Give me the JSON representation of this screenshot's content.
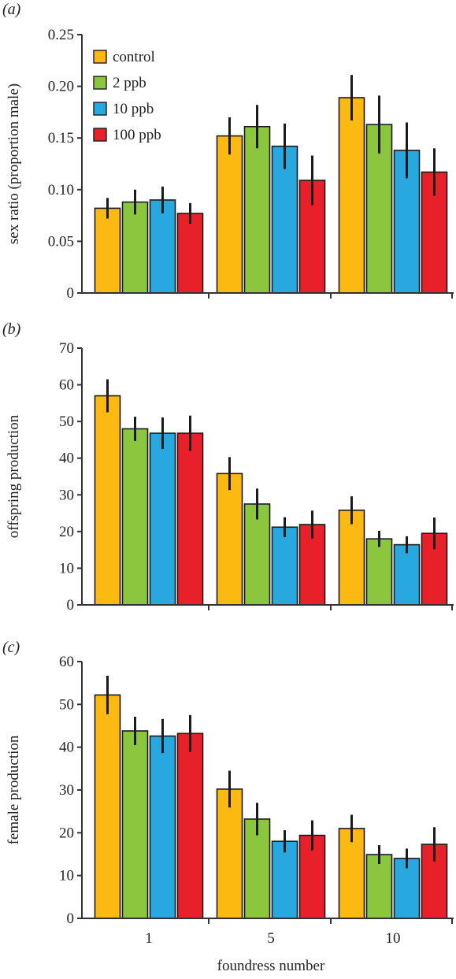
{
  "chart_data": [
    {
      "type": "bar",
      "panel_label": "(a)",
      "ylabel": "sex ratio (proportion male)",
      "xlabel": "",
      "categories": [
        "1",
        "5",
        "10"
      ],
      "ylim": [
        0,
        0.25
      ],
      "yticks": [
        0,
        0.05,
        0.1,
        0.15,
        0.2,
        0.25
      ],
      "ytick_labels": [
        "0",
        "0.05",
        "0.10",
        "0.15",
        "0.20",
        "0.25"
      ],
      "legend": {
        "show": true,
        "position": "top-left"
      },
      "series": [
        {
          "name": "control",
          "values": [
            0.082,
            0.152,
            0.189
          ],
          "errors": [
            0.01,
            0.018,
            0.022
          ]
        },
        {
          "name": "2 ppb",
          "values": [
            0.088,
            0.161,
            0.163
          ],
          "errors": [
            0.012,
            0.021,
            0.028
          ]
        },
        {
          "name": "10 ppb",
          "values": [
            0.09,
            0.142,
            0.138
          ],
          "errors": [
            0.013,
            0.022,
            0.027
          ]
        },
        {
          "name": "100 ppb",
          "values": [
            0.077,
            0.109,
            0.117
          ],
          "errors": [
            0.01,
            0.024,
            0.023
          ]
        }
      ]
    },
    {
      "type": "bar",
      "panel_label": "(b)",
      "ylabel": "offspring production",
      "xlabel": "",
      "categories": [
        "1",
        "5",
        "10"
      ],
      "ylim": [
        0,
        70
      ],
      "yticks": [
        0,
        10,
        20,
        30,
        40,
        50,
        60,
        70
      ],
      "ytick_labels": [
        "0",
        "10",
        "20",
        "30",
        "40",
        "50",
        "60",
        "70"
      ],
      "legend": {
        "show": false
      },
      "series": [
        {
          "name": "control",
          "values": [
            57.0,
            35.8,
            25.8
          ],
          "errors": [
            4.5,
            4.5,
            3.8
          ]
        },
        {
          "name": "2 ppb",
          "values": [
            48.0,
            27.5,
            18.0
          ],
          "errors": [
            3.3,
            4.2,
            2.2
          ]
        },
        {
          "name": "10 ppb",
          "values": [
            46.8,
            21.2,
            16.4
          ],
          "errors": [
            4.3,
            2.7,
            2.3
          ]
        },
        {
          "name": "100 ppb",
          "values": [
            46.8,
            21.9,
            19.5
          ],
          "errors": [
            4.8,
            3.8,
            4.3
          ]
        }
      ]
    },
    {
      "type": "bar",
      "panel_label": "(c)",
      "ylabel": "female production",
      "xlabel": "foundress number",
      "categories": [
        "1",
        "5",
        "10"
      ],
      "ylim": [
        0,
        60
      ],
      "yticks": [
        0,
        10,
        20,
        30,
        40,
        50,
        60
      ],
      "ytick_labels": [
        "0",
        "10",
        "20",
        "30",
        "40",
        "50",
        "60"
      ],
      "legend": {
        "show": false
      },
      "series": [
        {
          "name": "control",
          "values": [
            52.2,
            30.2,
            21.0
          ],
          "errors": [
            4.5,
            4.3,
            3.2
          ]
        },
        {
          "name": "2 ppb",
          "values": [
            43.8,
            23.2,
            14.9
          ],
          "errors": [
            3.3,
            3.8,
            2.2
          ]
        },
        {
          "name": "10 ppb",
          "values": [
            42.6,
            18.0,
            14.0
          ],
          "errors": [
            4.0,
            2.6,
            2.3
          ]
        },
        {
          "name": "100 ppb",
          "values": [
            43.2,
            19.4,
            17.3
          ],
          "errors": [
            4.3,
            3.5,
            4.0
          ]
        }
      ]
    }
  ],
  "colors": {
    "series": [
      "#fbb912",
      "#8cc63f",
      "#29a8e0",
      "#e8202a"
    ],
    "outline": "#1a1a1a",
    "error_bar": "#1a1a1a",
    "axis": "#333333"
  }
}
